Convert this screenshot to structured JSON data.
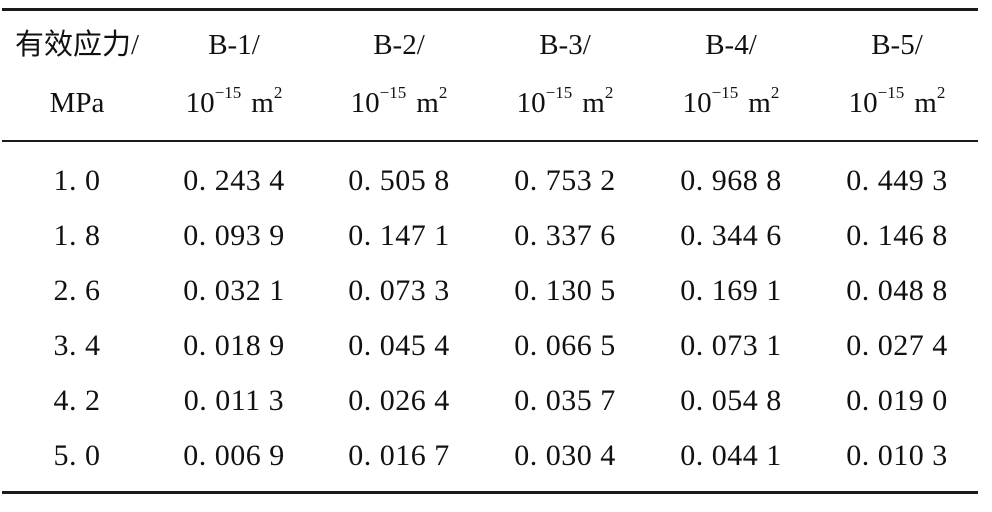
{
  "table": {
    "header": {
      "stress": {
        "line1": "有效应力/",
        "line2": "MPa"
      },
      "samples": [
        {
          "name": "B-1/",
          "unit_base": "10",
          "unit_exp": "−15",
          "unit_tail": "m",
          "unit_tail_exp": "2"
        },
        {
          "name": "B-2/",
          "unit_base": "10",
          "unit_exp": "−15",
          "unit_tail": "m",
          "unit_tail_exp": "2"
        },
        {
          "name": "B-3/",
          "unit_base": "10",
          "unit_exp": "−15",
          "unit_tail": "m",
          "unit_tail_exp": "2"
        },
        {
          "name": "B-4/",
          "unit_base": "10",
          "unit_exp": "−15",
          "unit_tail": "m",
          "unit_tail_exp": "2"
        },
        {
          "name": "B-5/",
          "unit_base": "10",
          "unit_exp": "−15",
          "unit_tail": "m",
          "unit_tail_exp": "2"
        }
      ]
    },
    "rows": [
      [
        "1. 0",
        "0. 243 4",
        "0. 505 8",
        "0. 753 2",
        "0. 968 8",
        "0. 449 3"
      ],
      [
        "1. 8",
        "0. 093 9",
        "0. 147 1",
        "0. 337 6",
        "0. 344 6",
        "0. 146 8"
      ],
      [
        "2. 6",
        "0. 032 1",
        "0. 073 3",
        "0. 130 5",
        "0. 169 1",
        "0. 048 8"
      ],
      [
        "3. 4",
        "0. 018 9",
        "0. 045 4",
        "0. 066 5",
        "0. 073 1",
        "0. 027 4"
      ],
      [
        "4. 2",
        "0. 011 3",
        "0. 026 4",
        "0. 035 7",
        "0. 054 8",
        "0. 019 0"
      ],
      [
        "5. 0",
        "0. 006 9",
        "0. 016 7",
        "0. 030 4",
        "0. 044 1",
        "0. 010 3"
      ]
    ]
  }
}
